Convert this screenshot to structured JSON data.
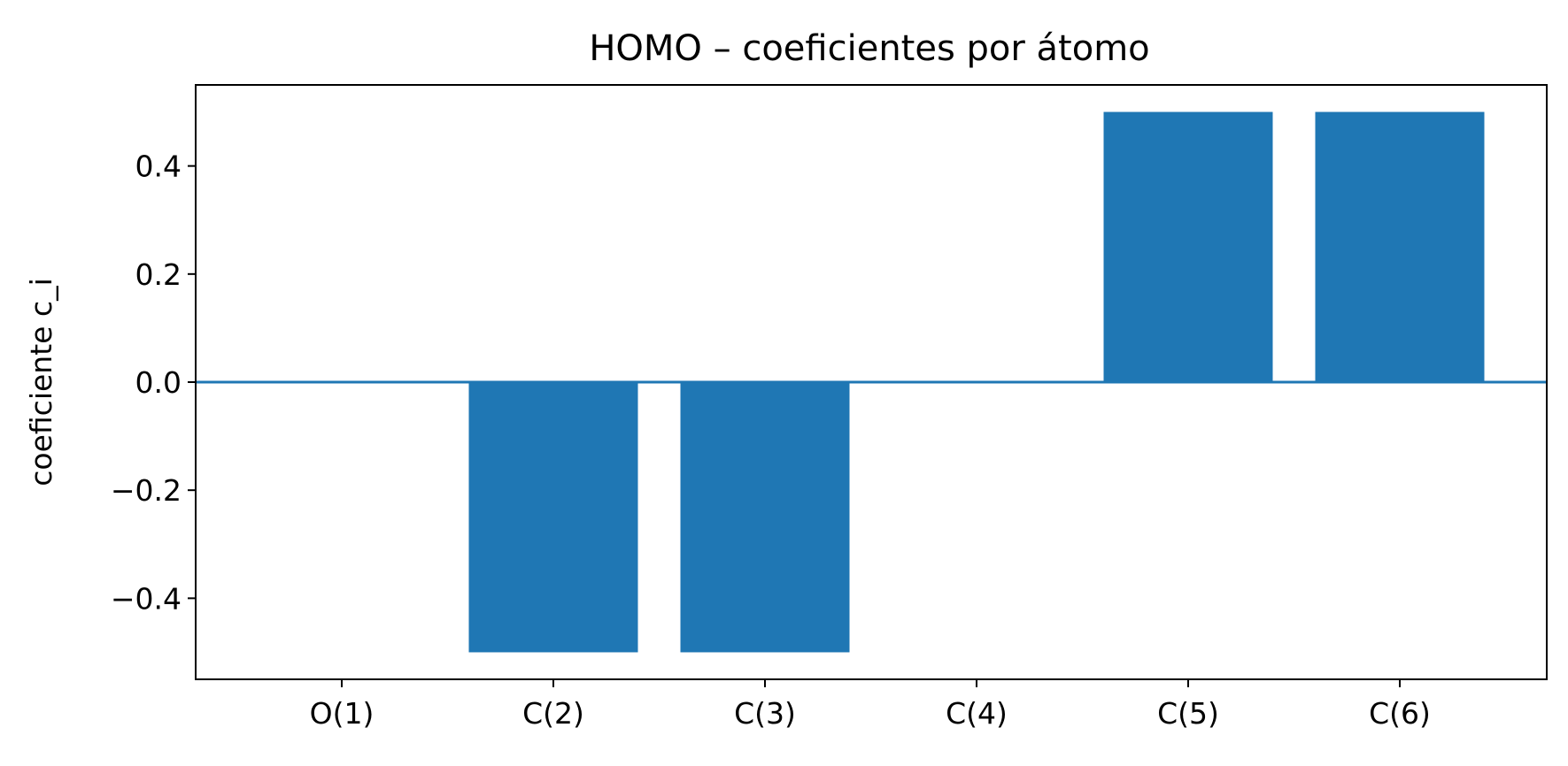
{
  "chart_data": {
    "type": "bar",
    "title": "HOMO – coeficientes por átomo",
    "xlabel": "",
    "ylabel": "coeficiente c_i",
    "categories": [
      "O(1)",
      "C(2)",
      "C(3)",
      "C(4)",
      "C(5)",
      "C(6)"
    ],
    "values": [
      0.0,
      -0.5,
      -0.5,
      0.0,
      0.5,
      0.5
    ],
    "ylim": [
      -0.55,
      0.55
    ],
    "yticks": [
      -0.4,
      -0.2,
      0.0,
      0.2,
      0.4
    ],
    "ytick_labels": [
      "−0.4",
      "−0.2",
      "0.0",
      "0.2",
      "0.4"
    ],
    "zero_line": true,
    "grid": false,
    "legend": "none",
    "bar_color": "#1f77b4"
  }
}
